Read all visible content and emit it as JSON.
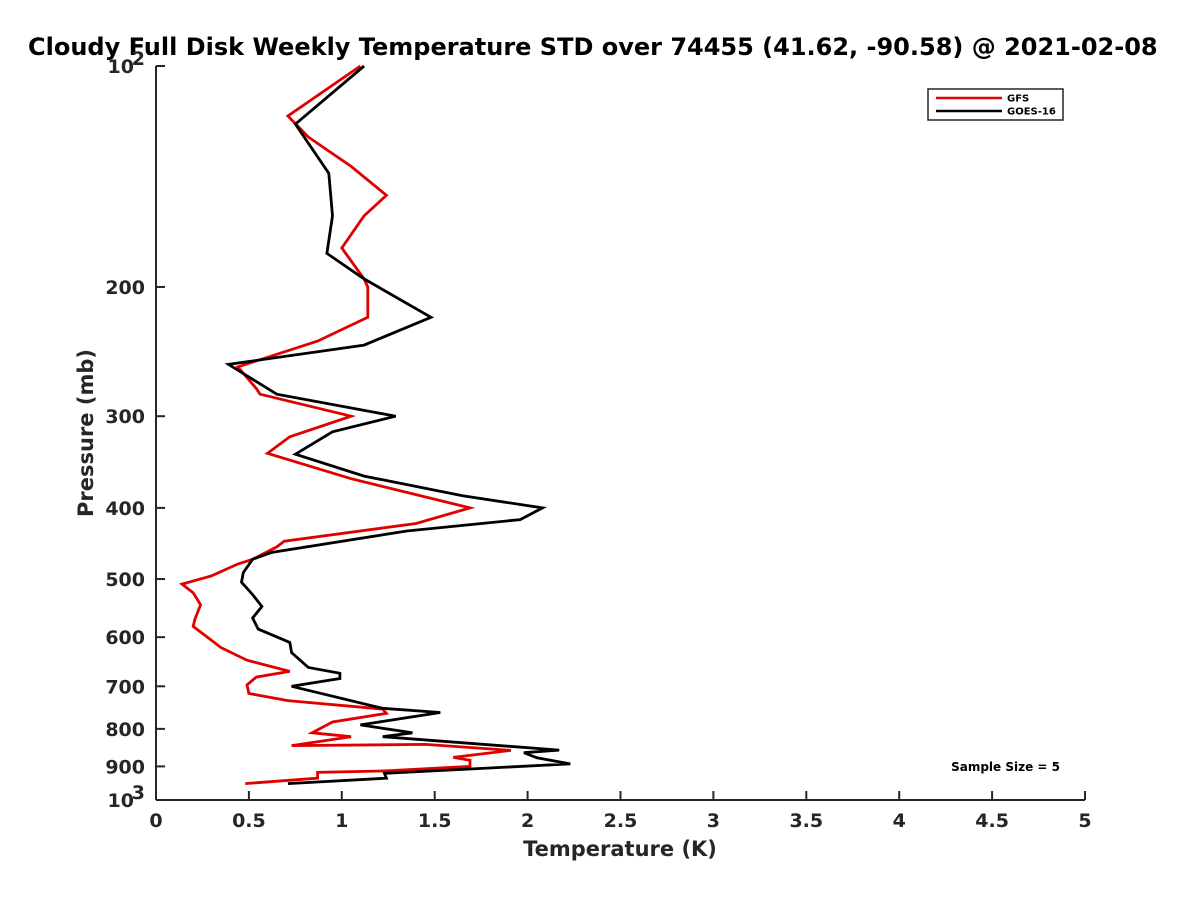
{
  "chart_data": {
    "type": "line",
    "title": "Cloudy Full Disk Weekly Temperature STD over 74455 (41.62, -90.58) @ 2021-02-08",
    "xlabel": "Temperature (K)",
    "ylabel": "Pressure (mb)",
    "xlim": [
      0,
      5
    ],
    "ylim": [
      100,
      1000
    ],
    "y_scale": "log",
    "y_reversed": true,
    "grid": false,
    "legend_position": "top-right",
    "x_ticks": [
      0,
      0.5,
      1,
      1.5,
      2,
      2.5,
      3,
      3.5,
      4,
      4.5,
      5
    ],
    "x_tick_labels": [
      "0",
      "0.5",
      "1",
      "1.5",
      "2",
      "2.5",
      "3",
      "3.5",
      "4",
      "4.5",
      "5"
    ],
    "y_ticks": [
      {
        "value": 100,
        "base": "10",
        "exp": "2"
      },
      {
        "value": 200,
        "label": "200"
      },
      {
        "value": 300,
        "label": "300"
      },
      {
        "value": 400,
        "label": "400"
      },
      {
        "value": 500,
        "label": "500"
      },
      {
        "value": 600,
        "label": "600"
      },
      {
        "value": 700,
        "label": "700"
      },
      {
        "value": 800,
        "label": "800"
      },
      {
        "value": 900,
        "label": "900"
      },
      {
        "value": 1000,
        "base": "10",
        "exp": "3"
      }
    ],
    "annotation": "Sample Size = 5",
    "series": [
      {
        "name": "GFS",
        "color": "#e00000",
        "points": [
          [
            1.1,
            100
          ],
          [
            0.71,
            117
          ],
          [
            0.82,
            125
          ],
          [
            1.05,
            137
          ],
          [
            1.24,
            150
          ],
          [
            1.12,
            160
          ],
          [
            1.0,
            177
          ],
          [
            1.12,
            195
          ],
          [
            1.14,
            200
          ],
          [
            1.14,
            220
          ],
          [
            0.87,
            237
          ],
          [
            0.44,
            257
          ],
          [
            0.54,
            275
          ],
          [
            0.56,
            280
          ],
          [
            1.05,
            300
          ],
          [
            0.72,
            320
          ],
          [
            0.6,
            337
          ],
          [
            1.05,
            365
          ],
          [
            1.69,
            400
          ],
          [
            1.4,
            420
          ],
          [
            0.69,
            444
          ],
          [
            0.65,
            452
          ],
          [
            0.52,
            470
          ],
          [
            0.44,
            477
          ],
          [
            0.3,
            495
          ],
          [
            0.14,
            508
          ],
          [
            0.2,
            522
          ],
          [
            0.24,
            542
          ],
          [
            0.21,
            567
          ],
          [
            0.2,
            580
          ],
          [
            0.35,
            620
          ],
          [
            0.49,
            645
          ],
          [
            0.72,
            668
          ],
          [
            0.54,
            680
          ],
          [
            0.49,
            697
          ],
          [
            0.5,
            716
          ],
          [
            0.71,
            732
          ],
          [
            1.22,
            752
          ],
          [
            1.24,
            762
          ],
          [
            0.95,
            783
          ],
          [
            0.84,
            810
          ],
          [
            1.05,
            820
          ],
          [
            0.73,
            843
          ],
          [
            1.45,
            840
          ],
          [
            1.91,
            856
          ],
          [
            1.6,
            875
          ],
          [
            1.69,
            883
          ],
          [
            1.69,
            900
          ],
          [
            1.22,
            913
          ],
          [
            0.87,
            917
          ],
          [
            0.87,
            925
          ],
          [
            0.87,
            934
          ],
          [
            0.48,
            950
          ]
        ]
      },
      {
        "name": "GOES-16",
        "color": "#000000",
        "points": [
          [
            1.12,
            100
          ],
          [
            0.75,
            120
          ],
          [
            0.93,
            140
          ],
          [
            0.95,
            160
          ],
          [
            0.92,
            180
          ],
          [
            1.12,
            195
          ],
          [
            1.48,
            220
          ],
          [
            1.12,
            240
          ],
          [
            0.39,
            255
          ],
          [
            0.65,
            280
          ],
          [
            1.29,
            300
          ],
          [
            0.95,
            315
          ],
          [
            0.75,
            338
          ],
          [
            1.12,
            362
          ],
          [
            1.65,
            385
          ],
          [
            2.08,
            400
          ],
          [
            1.96,
            415
          ],
          [
            1.35,
            430
          ],
          [
            0.62,
            460
          ],
          [
            0.52,
            470
          ],
          [
            0.47,
            490
          ],
          [
            0.46,
            505
          ],
          [
            0.52,
            525
          ],
          [
            0.57,
            545
          ],
          [
            0.52,
            565
          ],
          [
            0.55,
            585
          ],
          [
            0.72,
            610
          ],
          [
            0.73,
            630
          ],
          [
            0.82,
            660
          ],
          [
            0.99,
            672
          ],
          [
            0.99,
            683
          ],
          [
            0.73,
            700
          ],
          [
            1.22,
            750
          ],
          [
            1.53,
            760
          ],
          [
            1.1,
            790
          ],
          [
            1.38,
            810
          ],
          [
            1.22,
            820
          ],
          [
            2.17,
            855
          ],
          [
            1.98,
            862
          ],
          [
            2.05,
            876
          ],
          [
            2.23,
            893
          ],
          [
            1.23,
            920
          ],
          [
            1.24,
            934
          ],
          [
            0.71,
            950
          ]
        ]
      }
    ]
  }
}
